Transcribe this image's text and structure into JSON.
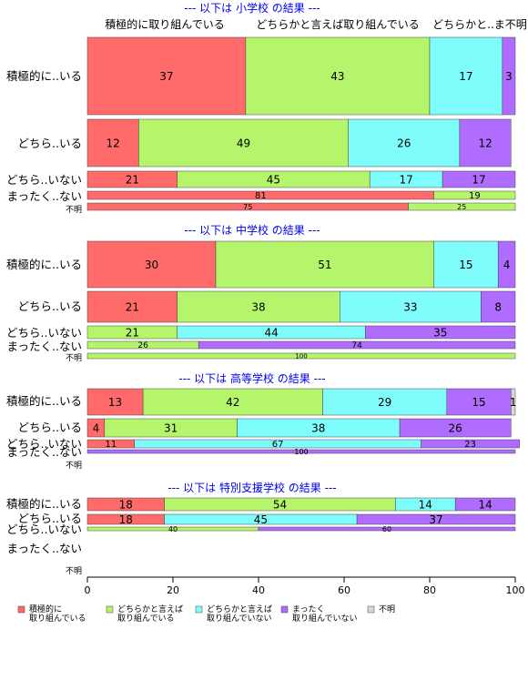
{
  "chart_data": {
    "type": "bar",
    "orientation": "horizontal-stacked-100",
    "xlim": [
      0,
      100
    ],
    "x_ticks": [
      "0",
      "20",
      "40",
      "60",
      "80",
      "100"
    ],
    "top_labels": [
      "積極的に取り組んでいる",
      "どちらかと言えば取り組んでいる",
      "どちらかと..ま不明"
    ],
    "colors": [
      "#ff6b6b",
      "#b5f56b",
      "#7ffcfc",
      "#b06bff",
      "#d8d8d8"
    ],
    "legend": [
      {
        "label": "積極的に\n取り組んでいる"
      },
      {
        "label": "どちらかと言えば\n取り組んでいる"
      },
      {
        "label": "どちらかと言えば\n取り組んでいない"
      },
      {
        "label": "まったく\n取り組んでいない"
      },
      {
        "label": "不明"
      }
    ],
    "panels": [
      {
        "title": "--- 以下は 小学校 の結果 ---",
        "rows": [
          {
            "label": "積極的に..いる",
            "values": [
              37,
              43,
              17,
              3,
              0
            ]
          },
          {
            "label": "どちら..いる",
            "values": [
              12,
              49,
              26,
              12,
              0
            ]
          },
          {
            "label": "どちら..いない",
            "values": [
              21,
              45,
              17,
              17,
              0
            ]
          },
          {
            "label": "まったく..ない",
            "values": [
              81,
              19,
              0,
              0,
              0
            ]
          },
          {
            "label": "不明",
            "values": [
              75,
              25,
              0,
              0,
              0
            ]
          }
        ]
      },
      {
        "title": "--- 以下は 中学校 の結果 ---",
        "rows": [
          {
            "label": "積極的に..いる",
            "values": [
              30,
              51,
              15,
              4,
              0
            ]
          },
          {
            "label": "どちら..いる",
            "values": [
              21,
              38,
              33,
              8,
              0
            ]
          },
          {
            "label": "どちら..いない",
            "values": [
              0,
              21,
              44,
              35,
              0
            ]
          },
          {
            "label": "まったく..ない",
            "values": [
              0,
              26,
              0,
              74,
              0
            ]
          },
          {
            "label": "不明",
            "values": [
              0,
              100,
              0,
              0,
              0
            ]
          }
        ]
      },
      {
        "title": "--- 以下は 高等学校 の結果 ---",
        "rows": [
          {
            "label": "積極的に..いる",
            "values": [
              13,
              42,
              29,
              15,
              1
            ]
          },
          {
            "label": "どちら..いる",
            "values": [
              4,
              31,
              38,
              26,
              0
            ]
          },
          {
            "label": "どちら..いない",
            "values": [
              11,
              0,
              67,
              23,
              0
            ]
          },
          {
            "label": "まったく..ない",
            "values": [
              0,
              0,
              0,
              100,
              0
            ]
          },
          {
            "label": "不明",
            "values": []
          }
        ]
      },
      {
        "title": "--- 以下は 特別支援学校 の結果 ---",
        "rows": [
          {
            "label": "積極的に..いる",
            "values": [
              18,
              54,
              14,
              14,
              0
            ]
          },
          {
            "label": "どちら..いる",
            "values": [
              18,
              0,
              45,
              37,
              0
            ]
          },
          {
            "label": "どちら..いない",
            "values": [
              0,
              40,
              0,
              60,
              0
            ]
          },
          {
            "label": "まったく..ない",
            "values": []
          },
          {
            "label": "不明",
            "values": []
          }
        ]
      }
    ]
  }
}
